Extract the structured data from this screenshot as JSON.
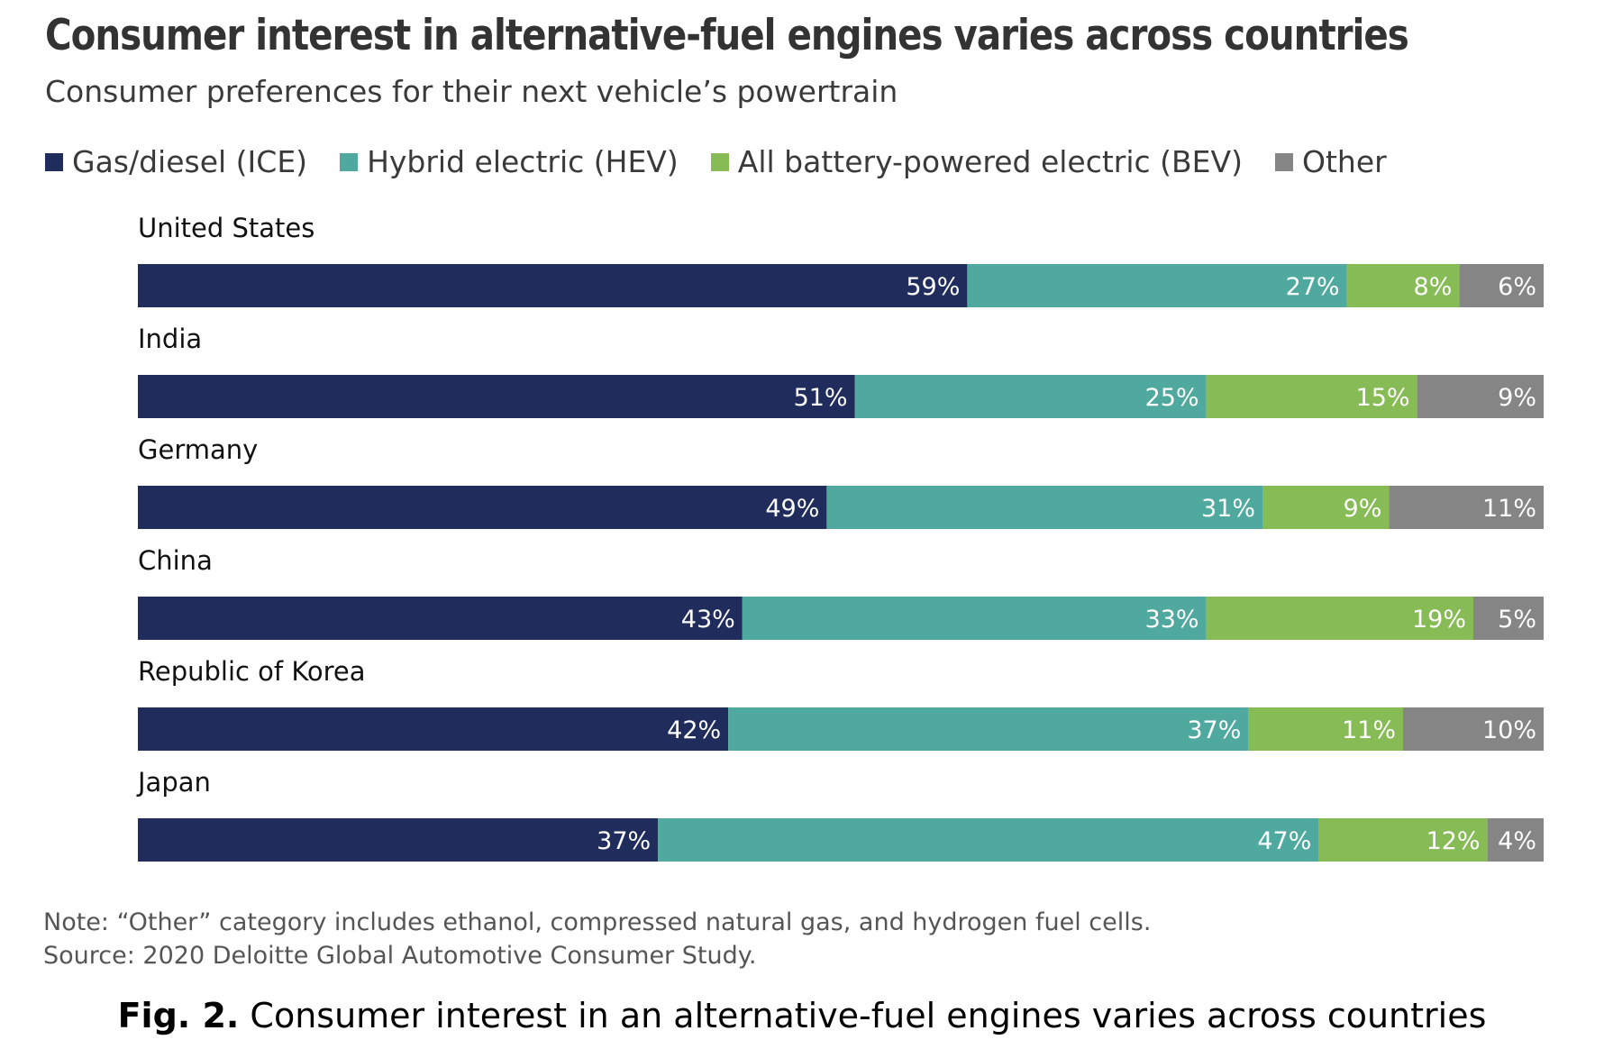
{
  "caption": {
    "prefix": "Fig. 2.",
    "text": " Consumer interest in an alternative-fuel engines varies across countries"
  },
  "note": "Note: “Other” category includes ethanol, compressed natural gas, and hydrogen fuel cells.",
  "source": "Source: 2020 Deloitte Global Automotive Consumer Study.",
  "chart_data": {
    "type": "bar",
    "orientation": "horizontal",
    "stacked": true,
    "title": "Consumer interest in alternative-fuel engines varies across countries",
    "subtitle": "Consumer preferences for their next vehicle’s powertrain",
    "legend_position": "top-left",
    "grid": false,
    "xlim": [
      0,
      100
    ],
    "categories": [
      "United States",
      "India",
      "Germany",
      "China",
      "Republic of Korea",
      "Japan"
    ],
    "series": [
      {
        "name": "Gas/diesel (ICE)",
        "color": "#202c5c",
        "values": [
          59,
          51,
          49,
          43,
          42,
          37
        ],
        "labels": [
          "59%",
          "51%",
          "49%",
          "43%",
          "42%",
          "37%"
        ]
      },
      {
        "name": "Hybrid electric (HEV)",
        "color": "#4fa99e",
        "values": [
          27,
          25,
          31,
          33,
          37,
          47
        ],
        "labels": [
          "27%",
          "25%",
          "31%",
          "33%",
          "37%",
          "47%"
        ]
      },
      {
        "name": "All battery-powered electric (BEV)",
        "color": "#86bb55",
        "values": [
          8,
          15,
          9,
          19,
          11,
          12
        ],
        "labels": [
          "8%",
          "15%",
          "9%",
          "19%",
          "11%",
          "12%"
        ]
      },
      {
        "name": "Other",
        "color": "#858585",
        "values": [
          6,
          9,
          11,
          5,
          10,
          4
        ],
        "labels": [
          "6%",
          "9%",
          "11%",
          "5%",
          "10%",
          "4%"
        ]
      }
    ]
  }
}
